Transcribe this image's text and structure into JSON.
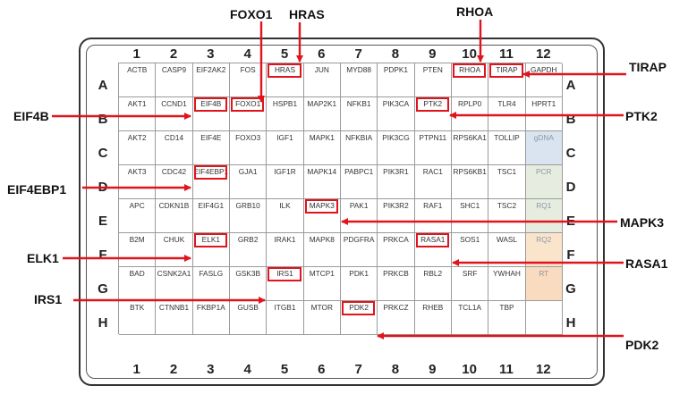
{
  "columns": [
    "1",
    "2",
    "3",
    "4",
    "5",
    "6",
    "7",
    "8",
    "9",
    "10",
    "11",
    "12"
  ],
  "rows": [
    "A",
    "B",
    "C",
    "D",
    "E",
    "F",
    "G",
    "H"
  ],
  "wells": [
    [
      "ACTB",
      "CASP9",
      "EIF2AK2",
      "FOS",
      "HRAS",
      "JUN",
      "MYD88",
      "PDPK1",
      "PTEN",
      "RHOA",
      "TIRAP",
      "GAPDH"
    ],
    [
      "AKT1",
      "CCND1",
      "EIF4B",
      "FOXO1",
      "HSPB1",
      "MAP2K1",
      "NFKB1",
      "PIK3CA",
      "PTK2",
      "RPLP0",
      "TLR4",
      "HPRT1"
    ],
    [
      "AKT2",
      "CD14",
      "EIF4E",
      "FOXO3",
      "IGF1",
      "MAPK1",
      "NFKBIA",
      "PIK3CG",
      "PTPN11",
      "RPS6KA1",
      "TOLLIP",
      "gDNA"
    ],
    [
      "AKT3",
      "CDC42",
      "EIF4EBP1",
      "GJA1",
      "IGF1R",
      "MAPK14",
      "PABPC1",
      "PIK3R1",
      "RAC1",
      "RPS6KB1",
      "TSC1",
      "PCR"
    ],
    [
      "APC",
      "CDKN1B",
      "EIF4G1",
      "GRB10",
      "ILK",
      "MAPK3",
      "PAK1",
      "PIK3R2",
      "RAF1",
      "SHC1",
      "TSC2",
      "RQ1"
    ],
    [
      "B2M",
      "CHUK",
      "ELK1",
      "GRB2",
      "IRAK1",
      "MAPK8",
      "PDGFRA",
      "PRKCA",
      "RASA1",
      "SOS1",
      "WASL",
      "RQ2"
    ],
    [
      "BAD",
      "CSNK2A1",
      "FASLG",
      "GSK3B",
      "IRS1",
      "MTCP1",
      "PDK1",
      "PRKCB",
      "RBL2",
      "SRF",
      "YWHAH",
      "RT"
    ],
    [
      "BTK",
      "CTNNB1",
      "FKBP1A",
      "GUSB",
      "ITGB1",
      "MTOR",
      "PDK2",
      "PRKCZ",
      "RHEB",
      "TCL1A",
      "TBP",
      ""
    ]
  ],
  "control_colors": {
    "gDNA": "#d9e4f0",
    "PCR": "#e6ede0",
    "RQ1": "#e6ede0",
    "RQ2": "#fbe4cc",
    "RT": "#f9dcc0"
  },
  "highlight_color": "#e0141c",
  "callouts": [
    {
      "label": "FOXO1",
      "gene": "FOXO1"
    },
    {
      "label": "HRAS",
      "gene": "HRAS"
    },
    {
      "label": "RHOA",
      "gene": "RHOA"
    },
    {
      "label": "TIRAP",
      "gene": "TIRAP"
    },
    {
      "label": "EIF4B",
      "gene": "EIF4B"
    },
    {
      "label": "PTK2",
      "gene": "PTK2"
    },
    {
      "label": "EIF4EBP1",
      "gene": "EIF4EBP1"
    },
    {
      "label": "MAPK3",
      "gene": "MAPK3"
    },
    {
      "label": "ELK1",
      "gene": "ELK1"
    },
    {
      "label": "RASA1",
      "gene": "RASA1"
    },
    {
      "label": "IRS1",
      "gene": "IRS1"
    },
    {
      "label": "PDK2",
      "gene": "PDK2"
    }
  ]
}
